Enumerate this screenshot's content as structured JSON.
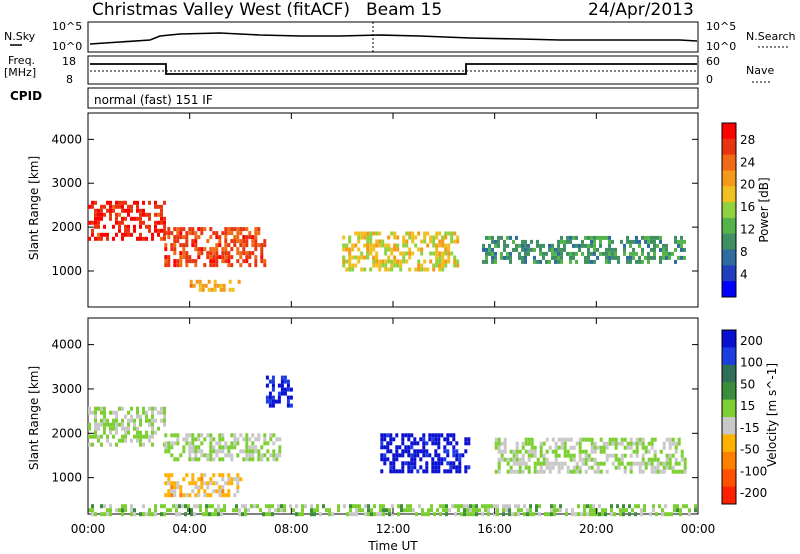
{
  "header": {
    "station": "Christmas Valley West (fitACF)",
    "beam": "Beam 15",
    "date": "24/Apr/2013"
  },
  "sky_panel": {
    "left_label": "N.Sky",
    "right_label": "N.Search",
    "left_ticks": [
      "10^5",
      "10^0"
    ],
    "right_ticks": [
      "10^5",
      "10^0"
    ]
  },
  "freq_panel": {
    "left_label_1": "Freq.",
    "left_label_2": "[MHz]",
    "right_label": "Nave",
    "left_ticks": [
      "18",
      "8"
    ],
    "right_ticks": [
      "60",
      "0"
    ]
  },
  "cpid": {
    "label": "CPID",
    "value": "normal (fast) 151 IF"
  },
  "x_axis": {
    "title": "Time UT",
    "ticks": [
      "00:00",
      "04:00",
      "08:00",
      "12:00",
      "16:00",
      "20:00",
      "00:00"
    ]
  },
  "power_panel": {
    "ylabel": "Slant Range [km]",
    "yticks": [
      "1000",
      "2000",
      "3000",
      "4000"
    ],
    "colorbar_label": "Power [dB]",
    "colorbar_ticks": [
      "4",
      "8",
      "12",
      "16",
      "20",
      "24",
      "28"
    ],
    "colors": [
      "#0000ff",
      "#1f3fbf",
      "#2e6b9e",
      "#3f8f63",
      "#53b44a",
      "#8fd13f",
      "#f0c020",
      "#f39a1a",
      "#f06a15",
      "#e83510",
      "#ff0000"
    ]
  },
  "velocity_panel": {
    "ylabel": "Slant Range [km]",
    "yticks": [
      "1000",
      "2000",
      "3000",
      "4000"
    ],
    "colorbar_label": "Velocity [m s^-1]",
    "colorbar_ticks": [
      "200",
      "100",
      "50",
      "15",
      "-15",
      "-50",
      "-100",
      "-200"
    ],
    "colors": [
      "#0a10d0",
      "#1c3ee0",
      "#2f6f58",
      "#3b8c3b",
      "#7ccf30",
      "#c8c8c8",
      "#ffb000",
      "#ff8000",
      "#ff5000",
      "#ff2000"
    ]
  },
  "chart_data": [
    {
      "type": "heatmap",
      "title": "Power",
      "x": [
        "00:00",
        "04:00",
        "08:00",
        "12:00",
        "16:00",
        "20:00",
        "00:00"
      ],
      "xlabel": "Time UT",
      "ylabel": "Slant Range [km]",
      "ylim": [
        180,
        4600
      ],
      "colorbar": {
        "label": "Power [dB]",
        "range": [
          0,
          31
        ]
      },
      "regions": [
        {
          "t_start": 0.0,
          "t_end": 3.0,
          "range_low": 1700,
          "range_high": 2600,
          "value": 28
        },
        {
          "t_start": 3.0,
          "t_end": 7.0,
          "range_low": 1100,
          "range_high": 2000,
          "value": 26
        },
        {
          "t_start": 4.0,
          "t_end": 6.0,
          "range_low": 600,
          "range_high": 800,
          "value": 20
        },
        {
          "t_start": 10.0,
          "t_end": 14.5,
          "range_low": 1000,
          "range_high": 1900,
          "value": 18
        },
        {
          "t_start": 15.5,
          "t_end": 23.5,
          "range_low": 1200,
          "range_high": 1800,
          "value": 10
        }
      ]
    },
    {
      "type": "heatmap",
      "title": "Velocity",
      "x": [
        "00:00",
        "04:00",
        "08:00",
        "12:00",
        "16:00",
        "20:00",
        "00:00"
      ],
      "xlabel": "Time UT",
      "ylabel": "Slant Range [km]",
      "ylim": [
        180,
        4600
      ],
      "colorbar": {
        "label": "Velocity [m s^-1]",
        "range": [
          -250,
          250
        ]
      },
      "regions": [
        {
          "t_start": 0.0,
          "t_end": 3.0,
          "range_low": 1700,
          "range_high": 2600,
          "value": 0
        },
        {
          "t_start": 3.0,
          "t_end": 7.5,
          "range_low": 1400,
          "range_high": 2000,
          "value": 0
        },
        {
          "t_start": 3.0,
          "t_end": 6.0,
          "range_low": 600,
          "range_high": 1100,
          "value": -60
        },
        {
          "t_start": 7.0,
          "t_end": 8.0,
          "range_low": 2600,
          "range_high": 3300,
          "value": 200
        },
        {
          "t_start": 11.5,
          "t_end": 15.0,
          "range_low": 1100,
          "range_high": 2000,
          "value": 230
        },
        {
          "t_start": 16.0,
          "t_end": 23.5,
          "range_low": 1100,
          "range_high": 1900,
          "value": 0
        },
        {
          "t_start": 0.0,
          "t_end": 24.0,
          "range_low": 200,
          "range_high": 400,
          "value": 20
        }
      ]
    }
  ]
}
